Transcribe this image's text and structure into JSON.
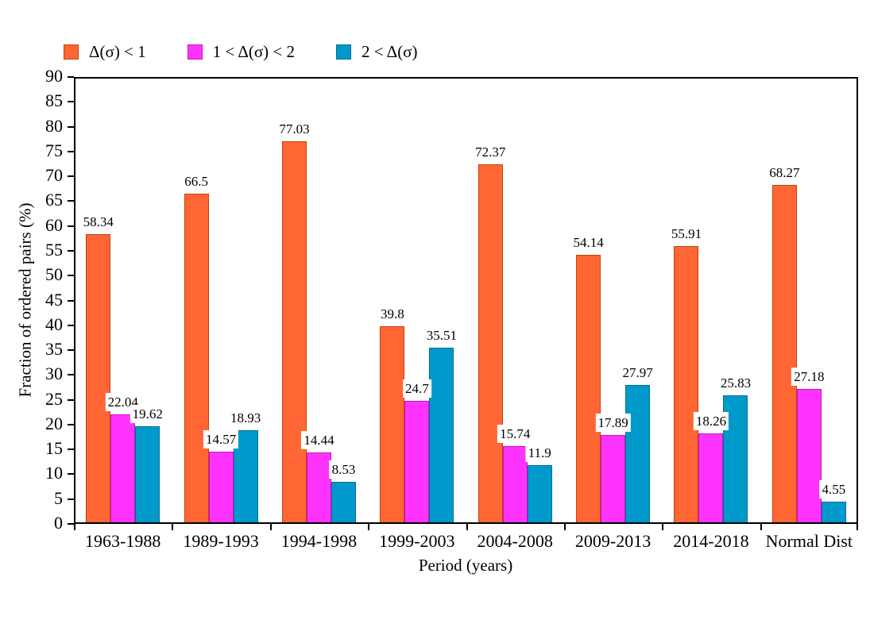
{
  "chart_data": {
    "type": "bar",
    "title": "",
    "xlabel": "Period (years)",
    "ylabel": "Fraction of ordered pairs (%)",
    "ylim": [
      0,
      90
    ],
    "ytick_step": 5,
    "grid": false,
    "legend_position": "top-left",
    "background_color": "#ffffff",
    "categories": [
      "1963-1988",
      "1989-1993",
      "1994-1998",
      "1999-2003",
      "2004-2008",
      "2009-2013",
      "2014-2018",
      "Normal Dist"
    ],
    "series": [
      {
        "name": "Δ(σ) < 1",
        "color": "#FF6633",
        "border_color": "#C2420E",
        "values": [
          58.34,
          66.5,
          77.03,
          39.8,
          72.37,
          54.14,
          55.91,
          68.27
        ]
      },
      {
        "name": "1 < Δ(σ) < 2",
        "color": "#FF33FF",
        "border_color": "#C214C2",
        "values": [
          22.04,
          14.57,
          14.44,
          24.7,
          15.74,
          17.89,
          18.26,
          27.18
        ]
      },
      {
        "name": "2 < Δ(σ)",
        "color": "#0099CC",
        "border_color": "#006E94",
        "values": [
          19.62,
          18.93,
          8.53,
          35.51,
          11.9,
          27.97,
          25.83,
          4.55
        ]
      }
    ]
  }
}
